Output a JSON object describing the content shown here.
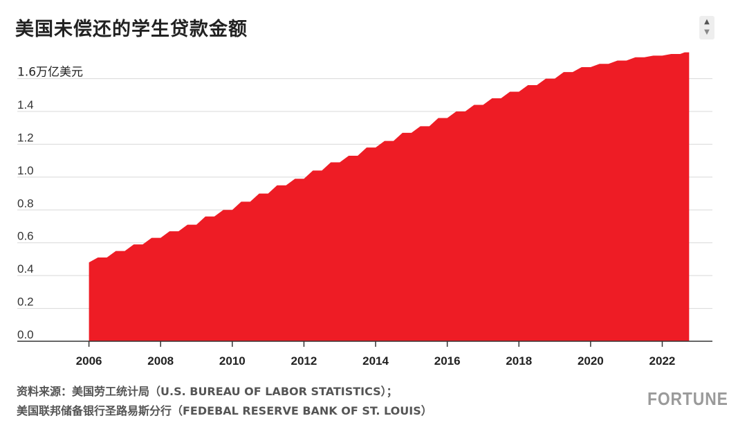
{
  "title": "美国未偿还的学生贷款金额",
  "scroll_widget": {
    "up_icon": "▲",
    "down_icon": "▼"
  },
  "source_line1": "资料来源：美国劳工统计局（U.S. BUREAU OF LABOR STATISTICS）；",
  "source_line2": "美国联邦储备银行圣路易斯分行（FEDEBAL RESERVE BANK OF ST. LOUIS）",
  "logo": "FORTUNE",
  "colors": {
    "area": "#ee1c25",
    "grid": "#d8d8d8",
    "axis": "#333333"
  },
  "chart_data": {
    "type": "area",
    "title": "美国未偿还的学生贷款金额",
    "unit_label": "1.6万亿美元",
    "y_ticks": [
      "0.0",
      "0.2",
      "0.4",
      "0.6",
      "0.8",
      "1.0",
      "1.2",
      "1.4",
      "1.6"
    ],
    "x_ticks": [
      "2006",
      "2008",
      "2010",
      "2012",
      "2014",
      "2016",
      "2018",
      "2020",
      "2022"
    ],
    "ylim": [
      0,
      1.75
    ],
    "xlim": [
      2004.0,
      2023.4
    ],
    "grid": true,
    "series": [
      {
        "x": [
          2006.0,
          2006.5,
          2007.0,
          2007.5,
          2008.0,
          2008.5,
          2009.0,
          2009.5,
          2010.0,
          2010.5,
          2011.0,
          2011.5,
          2012.0,
          2012.5,
          2013.0,
          2013.5,
          2014.0,
          2014.5,
          2015.0,
          2015.5,
          2016.0,
          2016.5,
          2017.0,
          2017.5,
          2018.0,
          2018.5,
          2019.0,
          2019.5,
          2020.0,
          2020.5,
          2021.0,
          2021.5,
          2022.0,
          2022.5,
          2022.75
        ],
        "values": [
          0.48,
          0.51,
          0.55,
          0.59,
          0.63,
          0.67,
          0.71,
          0.76,
          0.8,
          0.85,
          0.9,
          0.95,
          0.99,
          1.04,
          1.09,
          1.13,
          1.18,
          1.22,
          1.27,
          1.31,
          1.36,
          1.4,
          1.44,
          1.48,
          1.52,
          1.56,
          1.6,
          1.64,
          1.67,
          1.69,
          1.71,
          1.73,
          1.74,
          1.75,
          1.76
        ]
      }
    ]
  }
}
